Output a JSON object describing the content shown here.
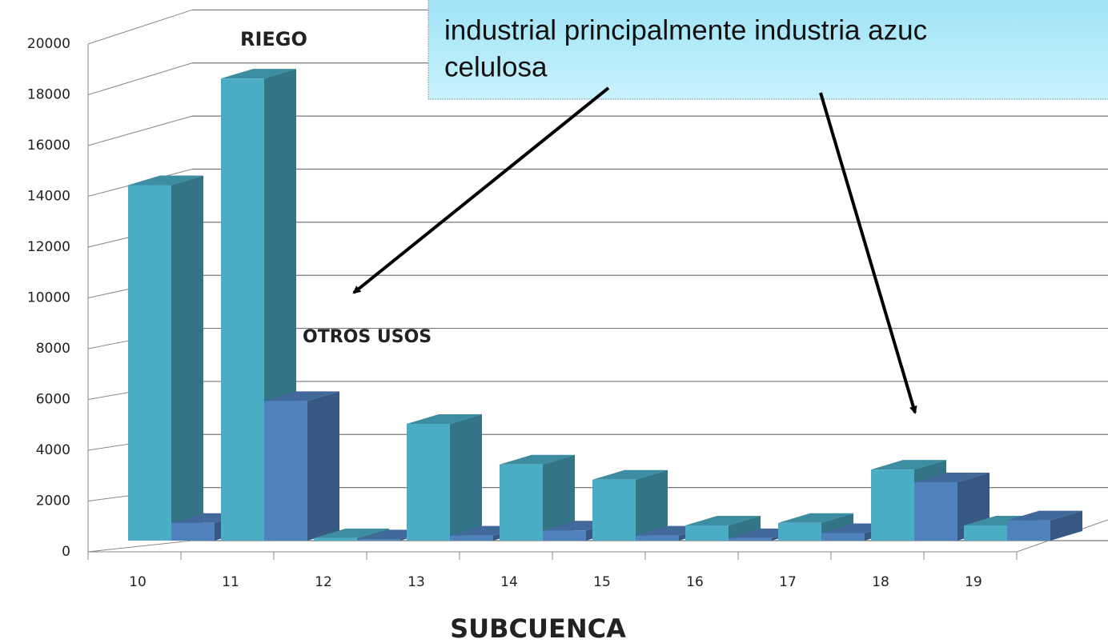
{
  "chart_data": {
    "type": "bar",
    "x_label": "SUBCUENCA",
    "callout": [
      "industrial principalmente industria azuc",
      "celulosa"
    ],
    "categories": [
      "10",
      "11",
      "12",
      "13",
      "14",
      "15",
      "16",
      "17",
      "18",
      "19"
    ],
    "series": [
      {
        "name": "RIEGO",
        "color": "#4bacc6",
        "values": [
          14000,
          18200,
          100,
          4600,
          3000,
          2400,
          600,
          700,
          2800,
          600
        ]
      },
      {
        "name": "OTROS USOS",
        "color": "#4f81bd",
        "values": [
          700,
          5500,
          50,
          200,
          400,
          200,
          100,
          300,
          2300,
          800
        ]
      }
    ],
    "ylim": [
      0,
      20000
    ],
    "yticks": [
      0,
      2000,
      4000,
      6000,
      8000,
      10000,
      12000,
      14000,
      16000,
      18000,
      20000
    ],
    "grid": true
  }
}
